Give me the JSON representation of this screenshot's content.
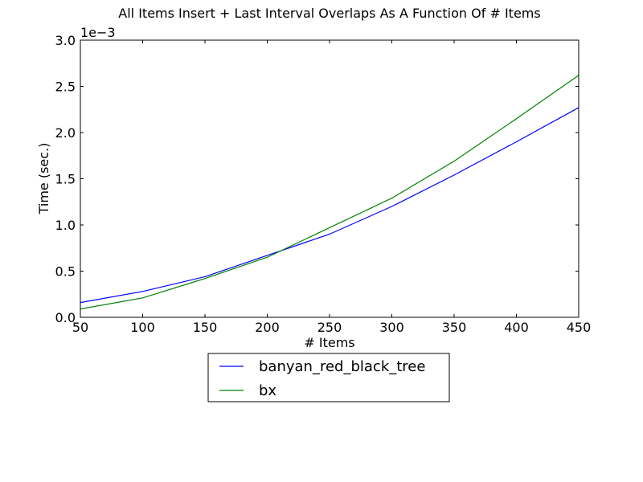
{
  "chart_data": {
    "type": "line",
    "title": "All Items Insert + Last Interval Overlaps As A Function Of # Items",
    "xlabel": "# Items",
    "ylabel": "Time (sec.)",
    "y_offset_label": "1e−3",
    "xlim": [
      50,
      450
    ],
    "ylim": [
      0.0,
      3.0
    ],
    "xticks": [
      "50",
      "100",
      "150",
      "200",
      "250",
      "300",
      "350",
      "400",
      "450"
    ],
    "yticks": [
      "0.0",
      "0.5",
      "1.0",
      "1.5",
      "2.0",
      "2.5",
      "3.0"
    ],
    "grid": false,
    "legend_position": "below",
    "x": [
      50,
      100,
      150,
      200,
      250,
      300,
      350,
      400,
      450
    ],
    "series": [
      {
        "name": "banyan_red_black_tree",
        "color": "#0000ff",
        "values": [
          0.16,
          0.28,
          0.44,
          0.67,
          0.9,
          1.2,
          1.54,
          1.9,
          2.27
        ]
      },
      {
        "name": "bx",
        "color": "#008000",
        "values": [
          0.09,
          0.21,
          0.42,
          0.65,
          0.97,
          1.29,
          1.69,
          2.15,
          2.62
        ]
      }
    ]
  }
}
